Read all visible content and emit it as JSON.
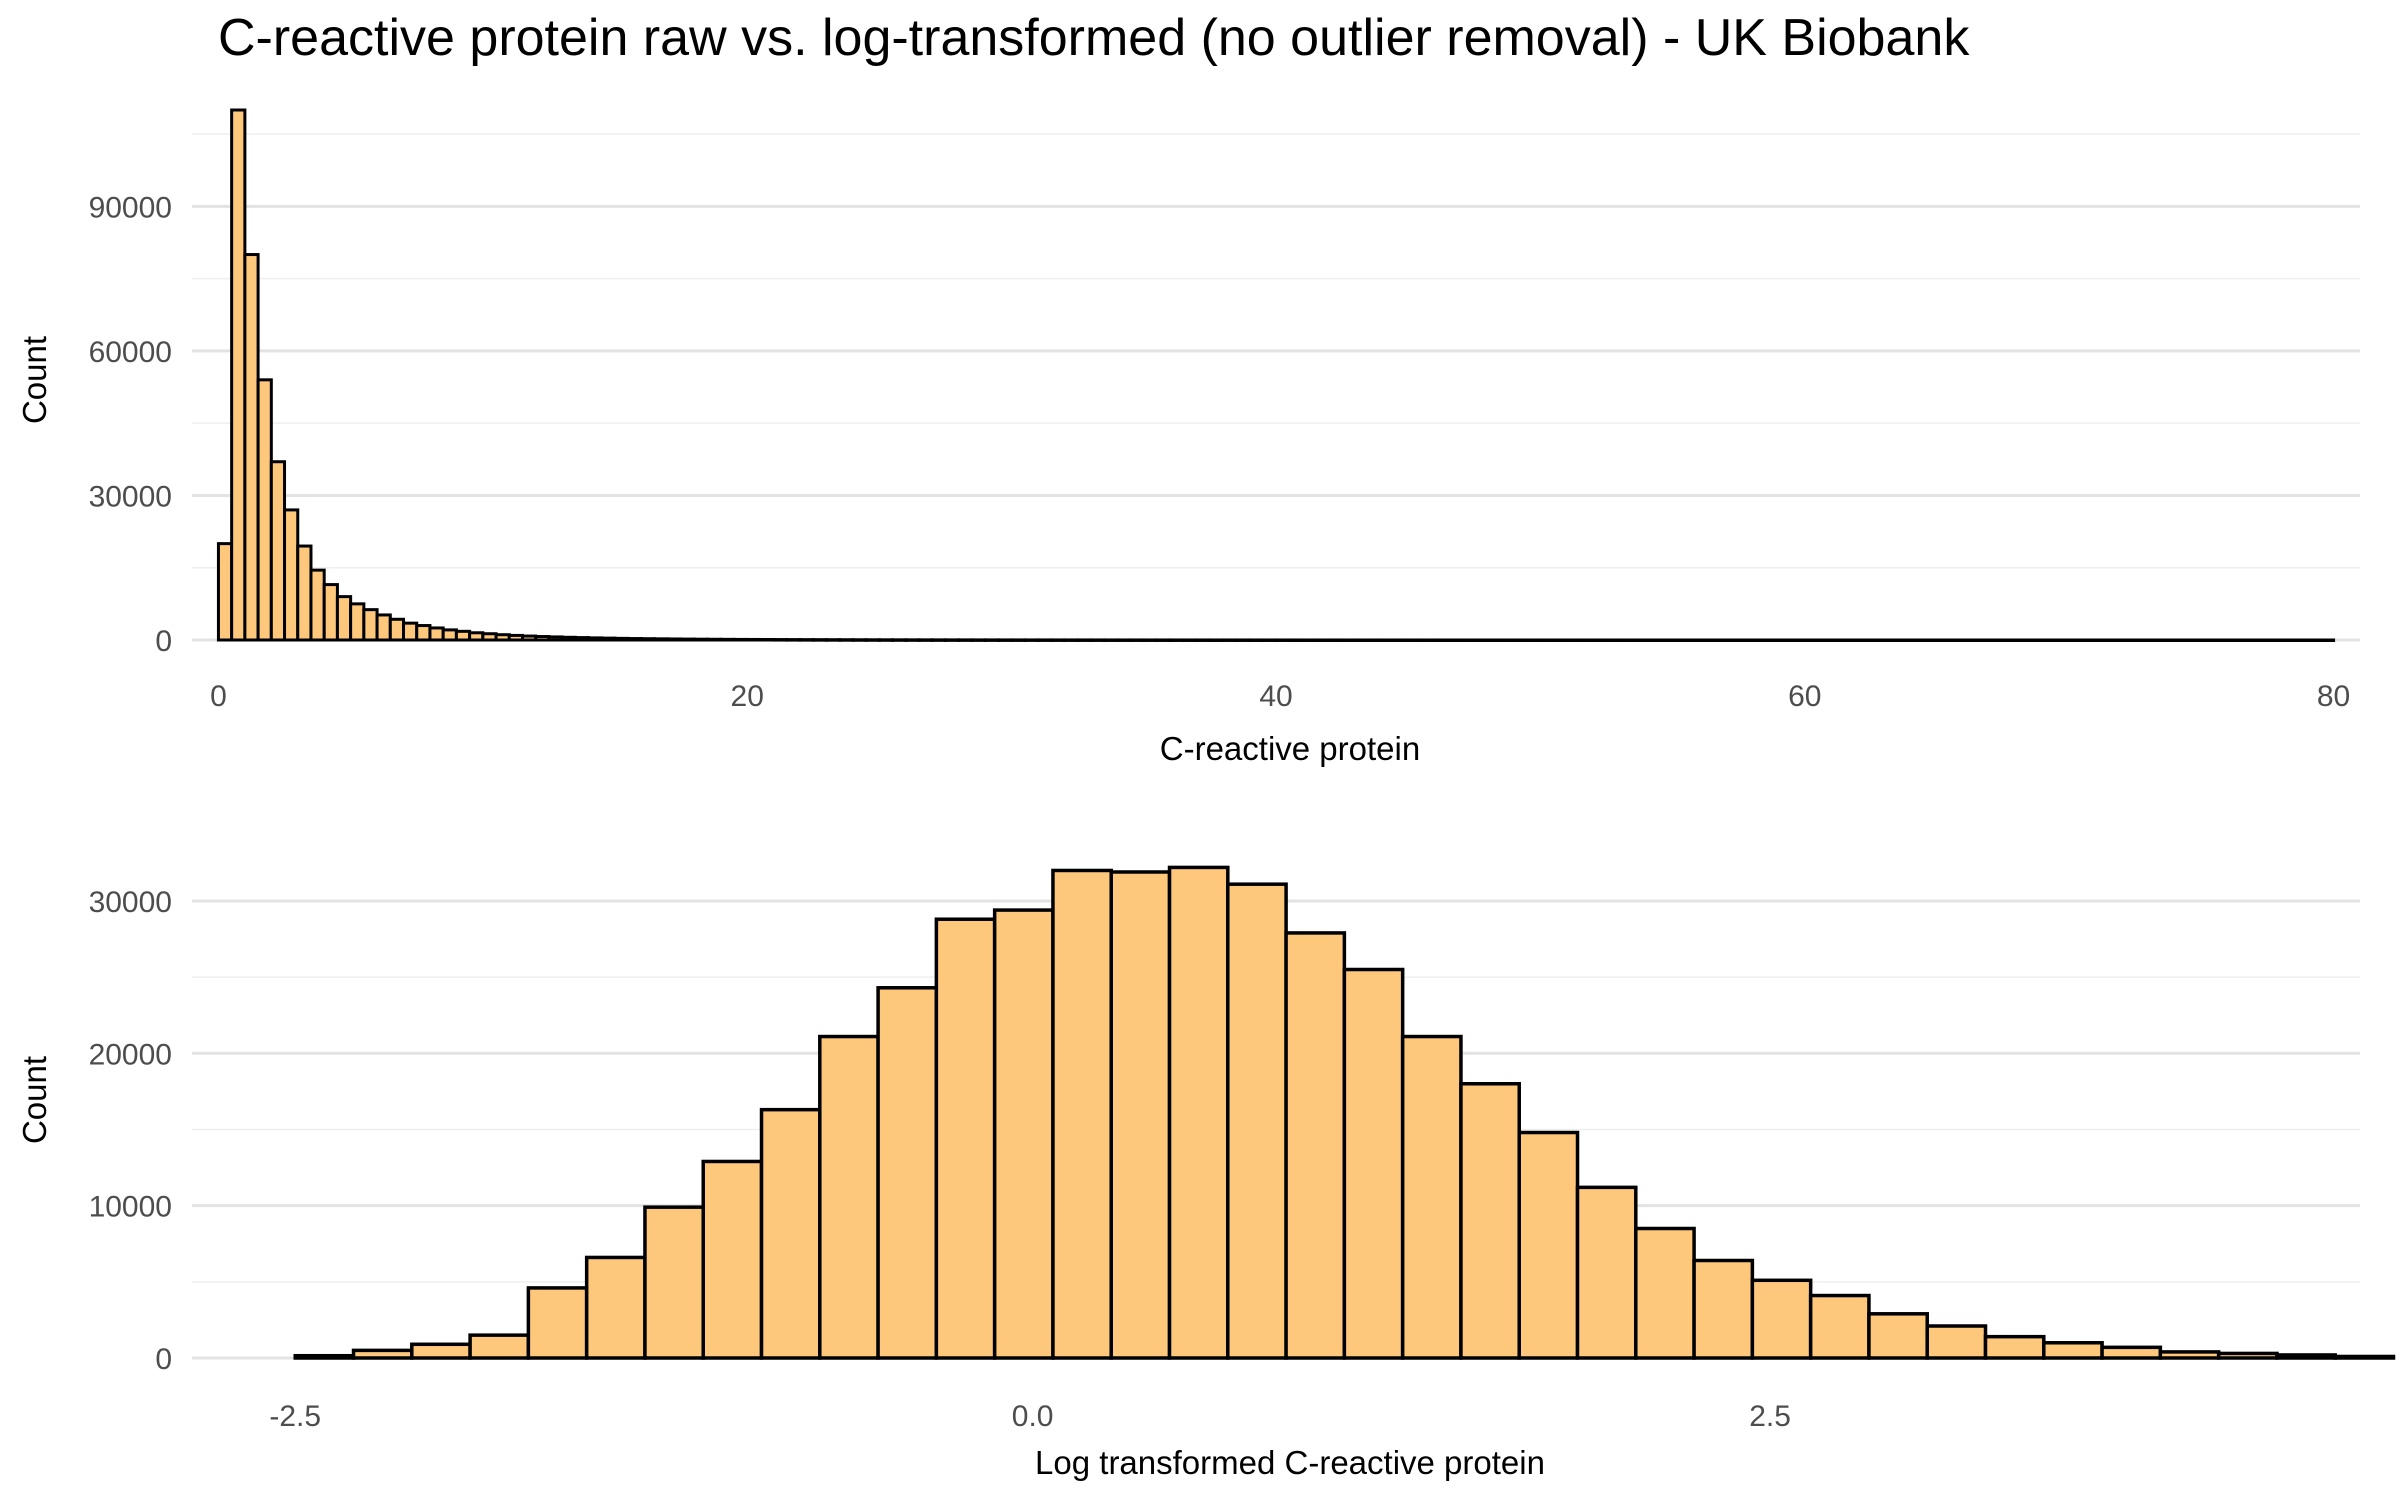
{
  "title": "C-reactive protein raw vs. log-transformed (no outlier removal) - UK Biobank",
  "colors": {
    "fill": "#fec87c",
    "stroke": "#000000",
    "grid": "#e3e3e3",
    "tick_text": "#4d4d4d"
  },
  "chart_data": [
    {
      "type": "bar",
      "subtype": "histogram",
      "xlabel": "C-reactive protein",
      "ylabel": "Count",
      "xlim": [
        -1,
        81
      ],
      "ylim": [
        0,
        110000
      ],
      "x_ticks": [
        0,
        20,
        40,
        60,
        80
      ],
      "x_tick_labels": [
        "0",
        "20",
        "40",
        "60",
        "80"
      ],
      "y_ticks": [
        0,
        30000,
        60000,
        90000
      ],
      "y_tick_labels": [
        "0",
        "30000",
        "60000",
        "90000"
      ],
      "grid": true,
      "legend": false,
      "bin_start": 0,
      "bin_width": 0.5,
      "values": [
        20000,
        110000,
        80000,
        54000,
        37000,
        27000,
        19500,
        14500,
        11500,
        9000,
        7500,
        6300,
        5200,
        4300,
        3500,
        3000,
        2500,
        2100,
        1800,
        1500,
        1300,
        1100,
        950,
        820,
        720,
        640,
        560,
        500,
        440,
        390,
        340,
        300,
        270,
        240,
        215,
        190,
        170,
        150,
        135,
        120,
        110,
        100,
        90,
        82,
        75,
        68,
        62,
        56,
        50,
        45,
        40,
        37,
        34,
        31,
        28,
        26,
        24,
        22,
        20,
        18,
        17,
        16,
        15,
        14,
        13,
        12,
        11,
        10,
        10,
        9,
        9,
        8,
        8,
        7,
        7,
        6,
        6,
        6,
        5,
        5,
        5,
        4,
        4,
        4,
        4,
        3,
        3,
        3,
        3,
        3,
        3,
        3,
        2,
        2,
        2,
        2,
        2,
        2,
        2,
        2,
        2,
        2,
        2,
        2,
        2,
        2,
        2,
        2,
        1,
        1,
        1,
        1,
        1,
        1,
        1,
        1,
        1,
        1,
        1,
        1,
        1,
        1,
        1,
        1,
        1,
        1,
        1,
        1,
        1,
        1,
        1,
        1,
        1,
        1,
        1,
        1,
        1,
        1,
        1,
        1,
        1,
        1,
        1,
        1,
        1,
        1,
        1,
        1,
        1,
        1,
        1,
        1,
        1,
        1,
        1,
        1,
        1,
        1,
        1,
        1
      ]
    },
    {
      "type": "bar",
      "subtype": "histogram",
      "xlabel": "Log transformed C-reactive protein",
      "ylabel": "Count",
      "xlim": [
        -2.85,
        4.5
      ],
      "ylim": [
        0,
        34000
      ],
      "x_ticks": [
        -2.5,
        0,
        2.5
      ],
      "x_tick_labels": [
        "-2.5",
        "0.0",
        "2.5"
      ],
      "y_ticks": [
        0,
        10000,
        20000,
        30000
      ],
      "y_tick_labels": [
        "0",
        "10000",
        "20000",
        "30000"
      ],
      "grid": true,
      "legend": false,
      "bin_start": -2.5,
      "bin_width": 0.1976,
      "bin_edges_start": -2.5,
      "values": [
        150,
        500,
        900,
        1500,
        4600,
        6600,
        9900,
        12900,
        16300,
        21100,
        24300,
        28800,
        29400,
        32000,
        31900,
        32200,
        31100,
        27900,
        25500,
        21100,
        18000,
        14800,
        11200,
        8500,
        6400,
        5100,
        4100,
        2900,
        2100,
        1400,
        1000,
        700,
        400,
        300,
        200,
        100
      ]
    }
  ]
}
